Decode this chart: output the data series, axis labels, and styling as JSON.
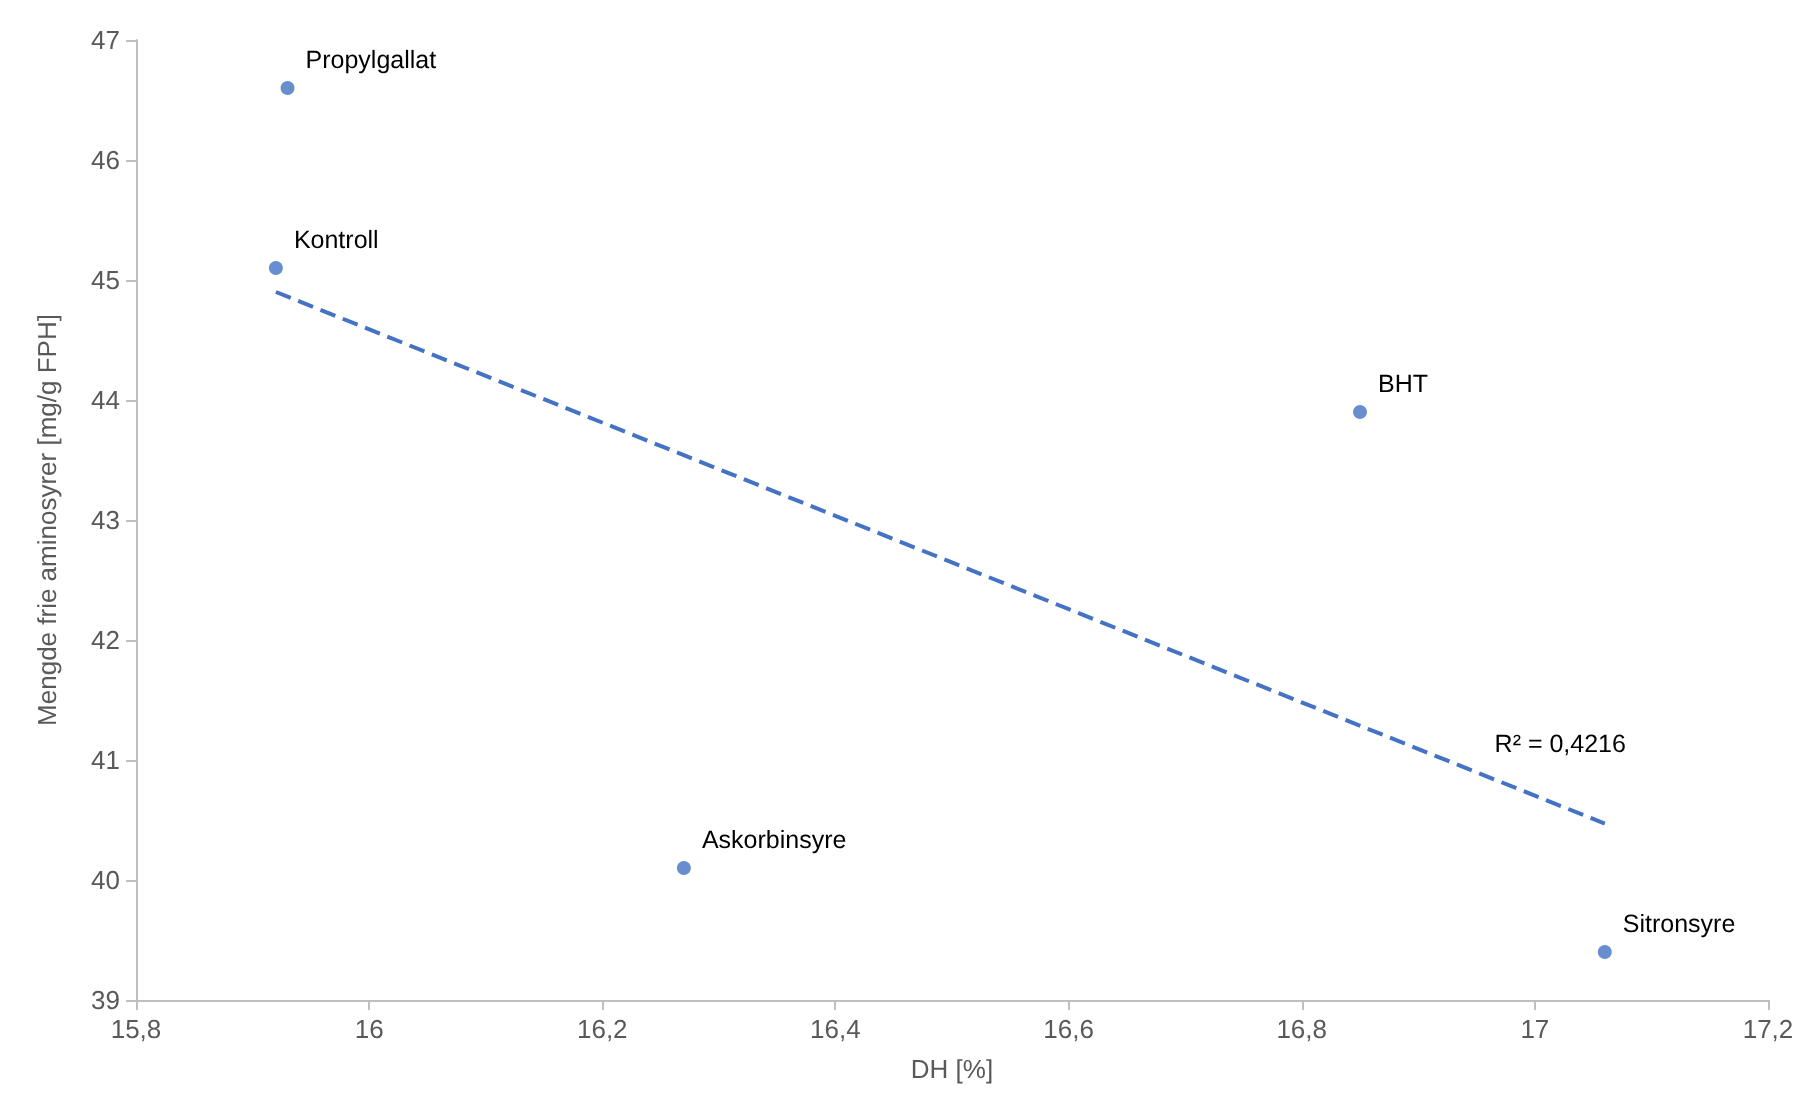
{
  "chart_data": {
    "type": "scatter",
    "xlabel": "DH [%]",
    "ylabel": "Mengde frie aminosyrer [mg/g FPH]",
    "series": [
      {
        "color": "#4472c4",
        "x": [
          15.93,
          15.92,
          16.85,
          16.27,
          17.06
        ],
        "values": [
          46.6,
          45.1,
          43.9,
          40.1,
          39.4
        ]
      },
      {
        "type": "line",
        "color": "#4472c4",
        "line_style": "dashed",
        "marker": "none",
        "x": [
          15.92,
          17.06
        ],
        "values": [
          44.9,
          40.47
        ]
      }
    ],
    "marker": "circle",
    "annotations": [
      {
        "text": "Propylgallat",
        "x": 15.93,
        "y": 46.6
      },
      {
        "text": "Kontroll",
        "x": 15.92,
        "y": 45.1
      },
      {
        "text": "BHT",
        "x": 16.85,
        "y": 43.9
      },
      {
        "text": "Askorbinsyre",
        "x": 16.27,
        "y": 40.1
      },
      {
        "text": "Sitronsyre",
        "x": 17.06,
        "y": 39.4
      },
      {
        "text": "R² = 0,4216",
        "x": 16.95,
        "y": 40.9
      }
    ],
    "xlim": [
      15.8,
      17.2
    ],
    "ylim": [
      39,
      47
    ],
    "xticks": [
      {
        "value": 15.8,
        "label": "15,8"
      },
      16,
      {
        "value": 16.2,
        "label": "16,2"
      },
      {
        "value": 16.4,
        "label": "16,4"
      },
      {
        "value": 16.6,
        "label": "16,6"
      },
      {
        "value": 16.8,
        "label": "16,8"
      },
      17,
      {
        "value": 17.2,
        "label": "17,2"
      }
    ],
    "yticks": [
      39,
      40,
      41,
      42,
      43,
      44,
      45,
      46,
      47
    ],
    "grid": false
  }
}
